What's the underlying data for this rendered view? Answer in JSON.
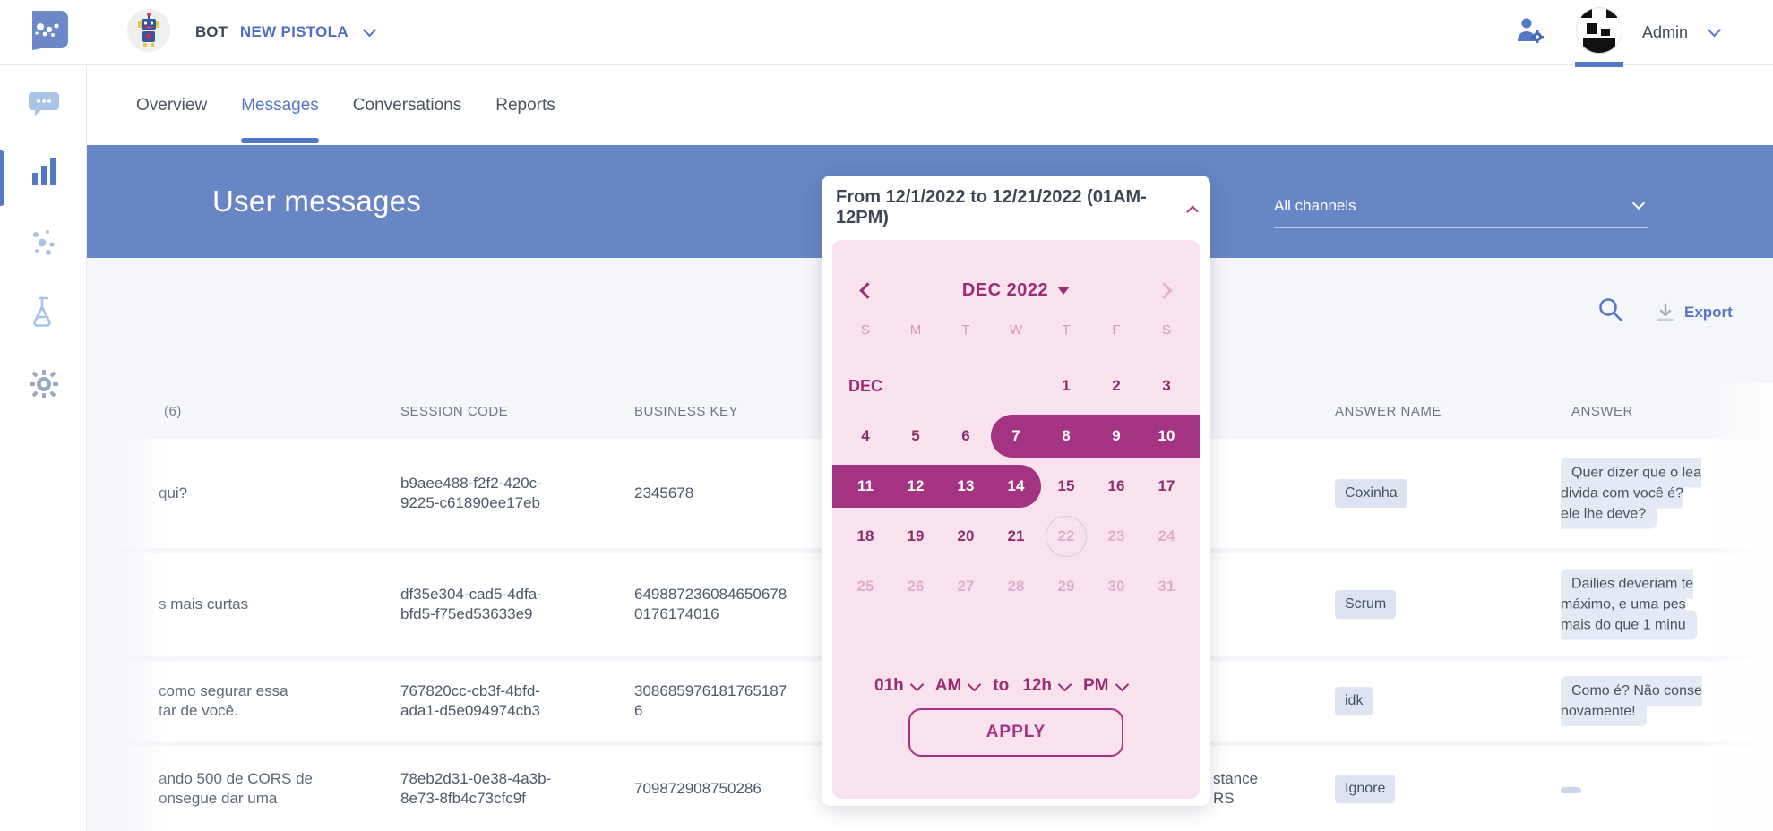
{
  "topbar": {
    "bot_label": "BOT",
    "bot_name": "NEW PISTOLA",
    "admin_label": "Admin",
    "icons": {
      "logo": "blip-logo",
      "admin_tools": "person-gear",
      "bot": "robot-avatar",
      "user": "identicon-avatar"
    }
  },
  "sidebar": {
    "icons": [
      "chat",
      "analytics",
      "network",
      "experiment",
      "settings"
    ]
  },
  "tabs": [
    {
      "label": "Overview",
      "active": false
    },
    {
      "label": "Messages",
      "active": true
    },
    {
      "label": "Conversations",
      "active": false
    },
    {
      "label": "Reports",
      "active": false
    }
  ],
  "banner": {
    "title": "User messages",
    "channels_selected": "All channels"
  },
  "toolbar": {
    "export_label": "Export",
    "icons": {
      "search": "magnifier",
      "export": "download"
    }
  },
  "datepicker": {
    "summary": "From 12/1/2022 to 12/21/2022 (01AM-12PM)",
    "month_label": "DEC 2022",
    "weekdays": [
      "S",
      "M",
      "T",
      "W",
      "T",
      "F",
      "S"
    ],
    "cells": [
      {
        "label": "DEC",
        "state": "month"
      },
      {
        "label": "",
        "state": "empty"
      },
      {
        "label": "",
        "state": "empty"
      },
      {
        "label": "",
        "state": "empty"
      },
      {
        "label": "1",
        "state": "normal"
      },
      {
        "label": "2",
        "state": "normal"
      },
      {
        "label": "3",
        "state": "normal"
      },
      {
        "label": "4",
        "state": "normal"
      },
      {
        "label": "5",
        "state": "normal"
      },
      {
        "label": "6",
        "state": "normal"
      },
      {
        "label": "7",
        "state": "selected"
      },
      {
        "label": "8",
        "state": "selected"
      },
      {
        "label": "9",
        "state": "selected"
      },
      {
        "label": "10",
        "state": "selected"
      },
      {
        "label": "11",
        "state": "selected"
      },
      {
        "label": "12",
        "state": "selected"
      },
      {
        "label": "13",
        "state": "selected"
      },
      {
        "label": "14",
        "state": "selected"
      },
      {
        "label": "15",
        "state": "normal"
      },
      {
        "label": "16",
        "state": "normal"
      },
      {
        "label": "17",
        "state": "normal"
      },
      {
        "label": "18",
        "state": "normal"
      },
      {
        "label": "19",
        "state": "normal"
      },
      {
        "label": "20",
        "state": "normal"
      },
      {
        "label": "21",
        "state": "normal"
      },
      {
        "label": "22",
        "state": "today"
      },
      {
        "label": "23",
        "state": "muted"
      },
      {
        "label": "24",
        "state": "muted"
      },
      {
        "label": "25",
        "state": "muted"
      },
      {
        "label": "26",
        "state": "muted"
      },
      {
        "label": "27",
        "state": "muted"
      },
      {
        "label": "28",
        "state": "muted"
      },
      {
        "label": "29",
        "state": "muted"
      },
      {
        "label": "30",
        "state": "muted"
      },
      {
        "label": "31",
        "state": "muted"
      }
    ],
    "time": {
      "start_hour": "01h",
      "start_meridiem": "AM",
      "separator": "to",
      "end_hour": "12h",
      "end_meridiem": "PM"
    },
    "apply_label": "APPLY"
  },
  "table": {
    "headers": {
      "messages": "(6)",
      "session_code": "SESSION CODE",
      "business_key": "BUSINESS KEY",
      "answer_name": "ANSWER NAME",
      "answer": "ANSWER"
    },
    "rows": [
      {
        "message": "qui?",
        "session": "b9aee488-f2f2-420c-\n9225-c61890ee17eb",
        "business_key": "2345678",
        "answer_name": "Coxinha",
        "answer": "Quer dizer que o lea\ndivida com você é? \nele lhe deve?"
      },
      {
        "message": "s mais curtas",
        "session": "df35e304-cad5-4dfa-\nbfd5-f75ed53633e9",
        "business_key": "649887236084650678\n0176174016",
        "answer_name": "Scrum",
        "answer": "Dailies deveriam te\nmáximo, e uma pes\nmais do que 1 minu"
      },
      {
        "message": "como segurar essa\ntar de você.",
        "session": "767820cc-cb3f-4bfd-\nada1-d5e094974cb3",
        "business_key": "308685976181765187\n6",
        "answer_name": "idk",
        "answer": "Como é? Não conse\nnovamente!"
      },
      {
        "message": "ando 500 de CORS de\nonsegue dar uma",
        "session": "78eb2d31-0e38-4a3b-\n8e73-8fb4c73cfc9f",
        "business_key": "709872908750286",
        "fragment": "stance\nRS",
        "answer_name": "Ignore",
        "answer": "–"
      }
    ]
  }
}
